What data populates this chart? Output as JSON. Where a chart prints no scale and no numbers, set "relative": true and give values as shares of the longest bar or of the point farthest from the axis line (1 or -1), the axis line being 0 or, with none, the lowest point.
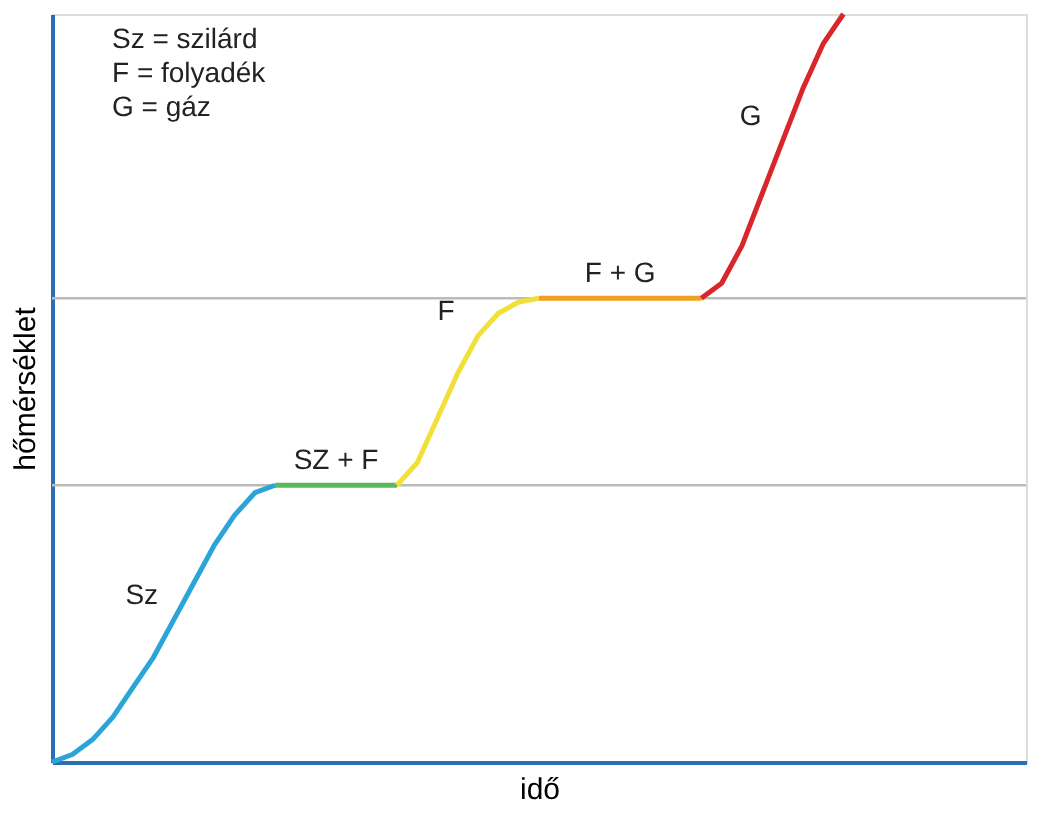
{
  "chart_data": {
    "type": "line",
    "relative": true,
    "xlabel": "idő",
    "ylabel": "hőmérséklet",
    "marker": "none",
    "line_style": "solid",
    "annotations": [
      "Sz = szilárd",
      "F = folyadék",
      "G = gáz"
    ],
    "categories": [
      null,
      null,
      null,
      null,
      null,
      null,
      null,
      null,
      null,
      null,
      null,
      null,
      null,
      null,
      null,
      null,
      null,
      null,
      null,
      null,
      null,
      null,
      null,
      null,
      null,
      null,
      null,
      null,
      null,
      null,
      null,
      null,
      null,
      null,
      null,
      null,
      null,
      null,
      null,
      null,
      null,
      null,
      null,
      null,
      null,
      null,
      null,
      null,
      null
    ],
    "series": [
      {
        "name": "Sz",
        "color": "#2ba5d8",
        "values": [
          0,
          0.01,
          0.03,
          0.06,
          0.1,
          0.14,
          0.19,
          0.24,
          0.29,
          0.33,
          0.36,
          0.37,
          null,
          null,
          null,
          null,
          null,
          null,
          null,
          null,
          null,
          null,
          null,
          null,
          null,
          null,
          null,
          null,
          null,
          null,
          null,
          null,
          null,
          null,
          null,
          null,
          null,
          null,
          null,
          null,
          null,
          null,
          null,
          null,
          null,
          null,
          null,
          null,
          null
        ]
      },
      {
        "name": "SZ + F",
        "color": "#5cb85c",
        "values": [
          null,
          null,
          null,
          null,
          null,
          null,
          null,
          null,
          null,
          null,
          null,
          0.37,
          0.37,
          0.37,
          0.37,
          0.37,
          0.37,
          0.37,
          null,
          null,
          null,
          null,
          null,
          null,
          null,
          null,
          null,
          null,
          null,
          null,
          null,
          null,
          null,
          null,
          null,
          null,
          null,
          null,
          null,
          null,
          null,
          null,
          null,
          null,
          null,
          null,
          null,
          null,
          null
        ]
      },
      {
        "name": "F",
        "color": "#f2e03a",
        "values": [
          null,
          null,
          null,
          null,
          null,
          null,
          null,
          null,
          null,
          null,
          null,
          null,
          null,
          null,
          null,
          null,
          null,
          0.37,
          0.4,
          0.46,
          0.52,
          0.57,
          0.6,
          0.615,
          0.62,
          null,
          null,
          null,
          null,
          null,
          null,
          null,
          null,
          null,
          null,
          null,
          null,
          null,
          null,
          null,
          null,
          null,
          null,
          null,
          null,
          null,
          null,
          null,
          null
        ]
      },
      {
        "name": "F + G",
        "color": "#f0a020",
        "values": [
          null,
          null,
          null,
          null,
          null,
          null,
          null,
          null,
          null,
          null,
          null,
          null,
          null,
          null,
          null,
          null,
          null,
          null,
          null,
          null,
          null,
          null,
          null,
          null,
          0.62,
          0.62,
          0.62,
          0.62,
          0.62,
          0.62,
          0.62,
          0.62,
          0.62,
          null,
          null,
          null,
          null,
          null,
          null,
          null,
          null,
          null,
          null,
          null,
          null,
          null,
          null,
          null,
          null
        ]
      },
      {
        "name": "G",
        "color": "#d9262a",
        "values": [
          null,
          null,
          null,
          null,
          null,
          null,
          null,
          null,
          null,
          null,
          null,
          null,
          null,
          null,
          null,
          null,
          null,
          null,
          null,
          null,
          null,
          null,
          null,
          null,
          null,
          null,
          null,
          null,
          null,
          null,
          null,
          null,
          0.62,
          0.64,
          0.69,
          0.76,
          0.83,
          0.9,
          0.96,
          1.0,
          null,
          null,
          null,
          null,
          null,
          null,
          null,
          null,
          null
        ]
      }
    ],
    "ref_lines": [
      {
        "axis": "y",
        "value": 0.37,
        "color": "#bbbbbb"
      },
      {
        "axis": "y",
        "value": 0.62,
        "color": "#bbbbbb"
      }
    ]
  }
}
